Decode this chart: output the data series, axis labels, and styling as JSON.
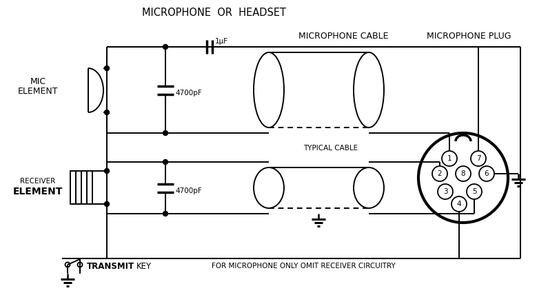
{
  "title": "MICROPHONE  OR  HEADSET",
  "cable_label": "MICROPHONE CABLE",
  "plug_label": "MICROPHONE PLUG",
  "typical_cable": "TYPICAL CABLE",
  "transmit_label": "TRANSMIT",
  "key_label": "KEY",
  "note_label": "FOR MICROPHONE ONLY OMIT RECEIVER CIRCUITRY",
  "mic_label1": "MIC",
  "mic_label2": "ELEMENT",
  "recv_label1": "RECEIVER",
  "recv_label2": "ELEMENT",
  "cap1_label": "1µF",
  "cap2_label": "4700pF",
  "cap3_label": "4700pF",
  "bg_color": "#ffffff",
  "line_color": "#000000",
  "fig_width": 7.95,
  "fig_height": 4.28,
  "dpi": 100
}
